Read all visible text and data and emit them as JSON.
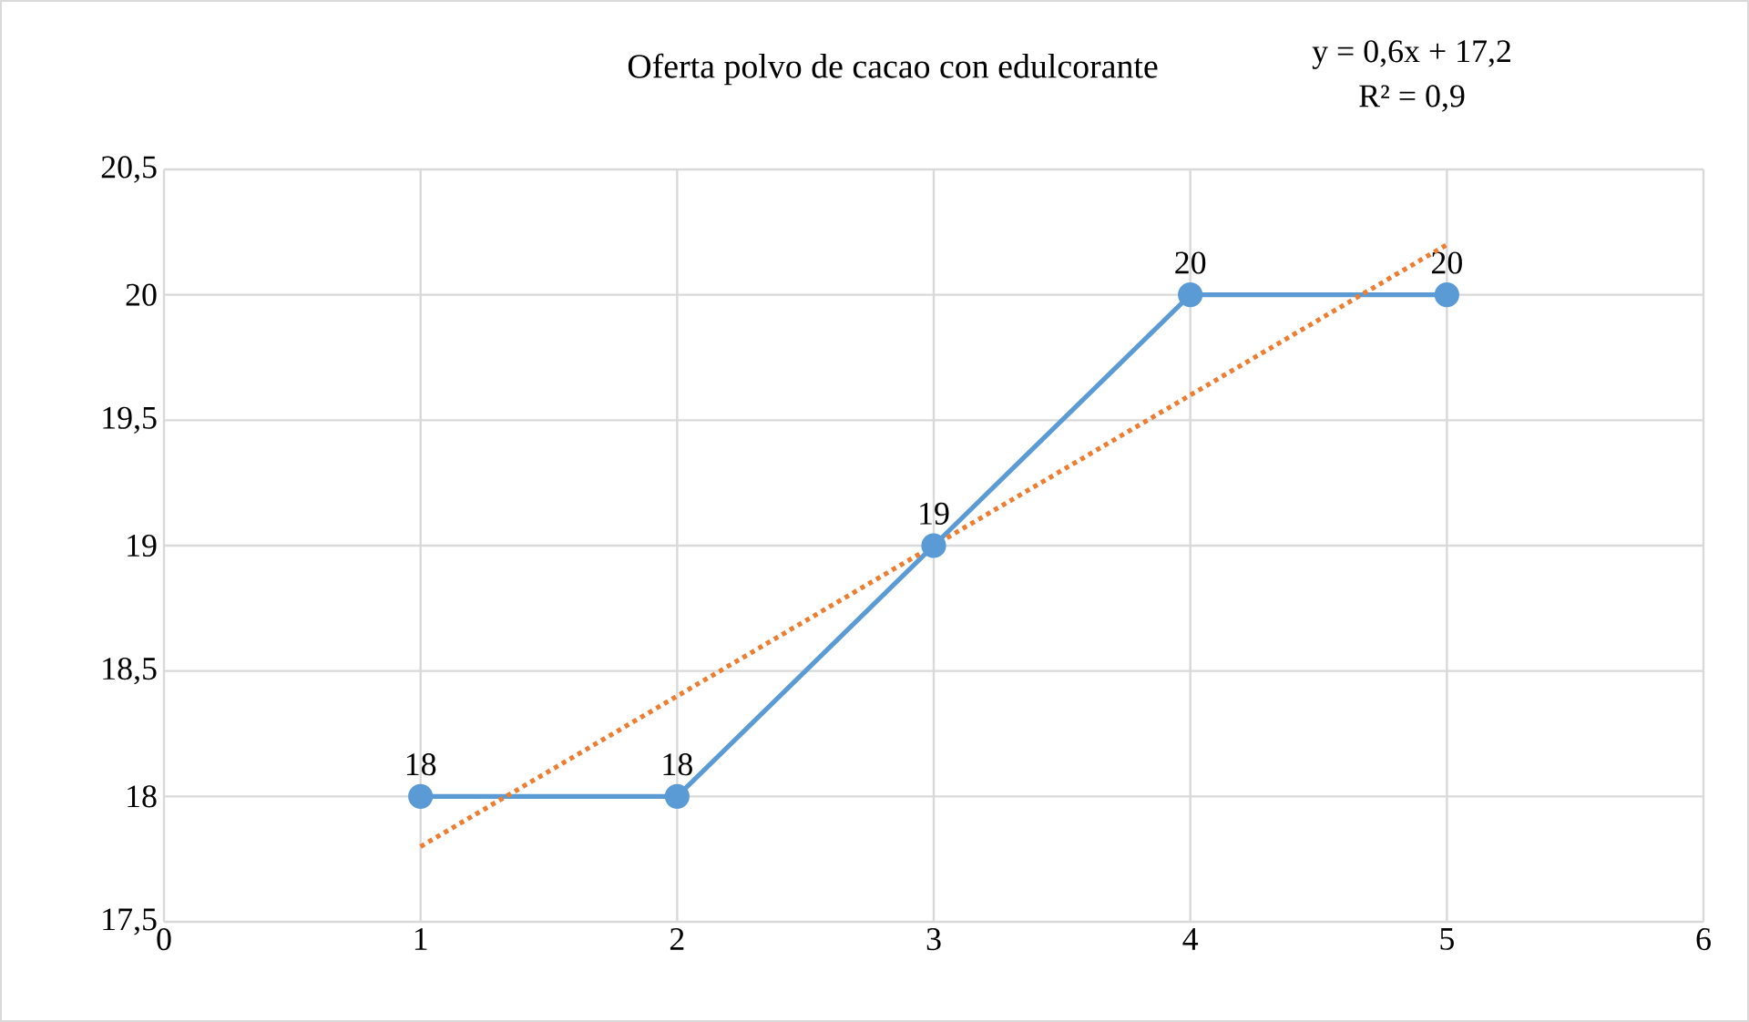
{
  "chart_data": {
    "type": "line",
    "title": "Oferta polvo de cacao con edulcorante",
    "annotations": [
      "y = 0,6x + 17,2",
      "R² = 0,9"
    ],
    "x": [
      1,
      2,
      3,
      4,
      5
    ],
    "series": [
      {
        "color": "#5b9bd5",
        "values": [
          18,
          18,
          19,
          20,
          20
        ],
        "value_labels": [
          "18",
          "18",
          "19",
          "20",
          "20"
        ],
        "marker": "circle",
        "line_style": "solid"
      },
      {
        "type": "line",
        "x": [
          1,
          5
        ],
        "color": "#ed7d31",
        "values": [
          17.8,
          20.2
        ],
        "marker": "none",
        "line_style": "dotted"
      }
    ],
    "xlim": [
      0,
      6
    ],
    "xticks": [
      0,
      1,
      2,
      3,
      4,
      5,
      6
    ],
    "ylim": [
      17.5,
      20.5
    ],
    "yticks": [
      {
        "value": 17.5,
        "label": "17,5"
      },
      {
        "value": 18,
        "label": "18"
      },
      {
        "value": 18.5,
        "label": "18,5"
      },
      {
        "value": 19,
        "label": "19"
      },
      {
        "value": 19.5,
        "label": "19,5"
      },
      {
        "value": 20,
        "label": "20"
      },
      {
        "value": 20.5,
        "label": "20,5"
      }
    ],
    "grid": true
  }
}
